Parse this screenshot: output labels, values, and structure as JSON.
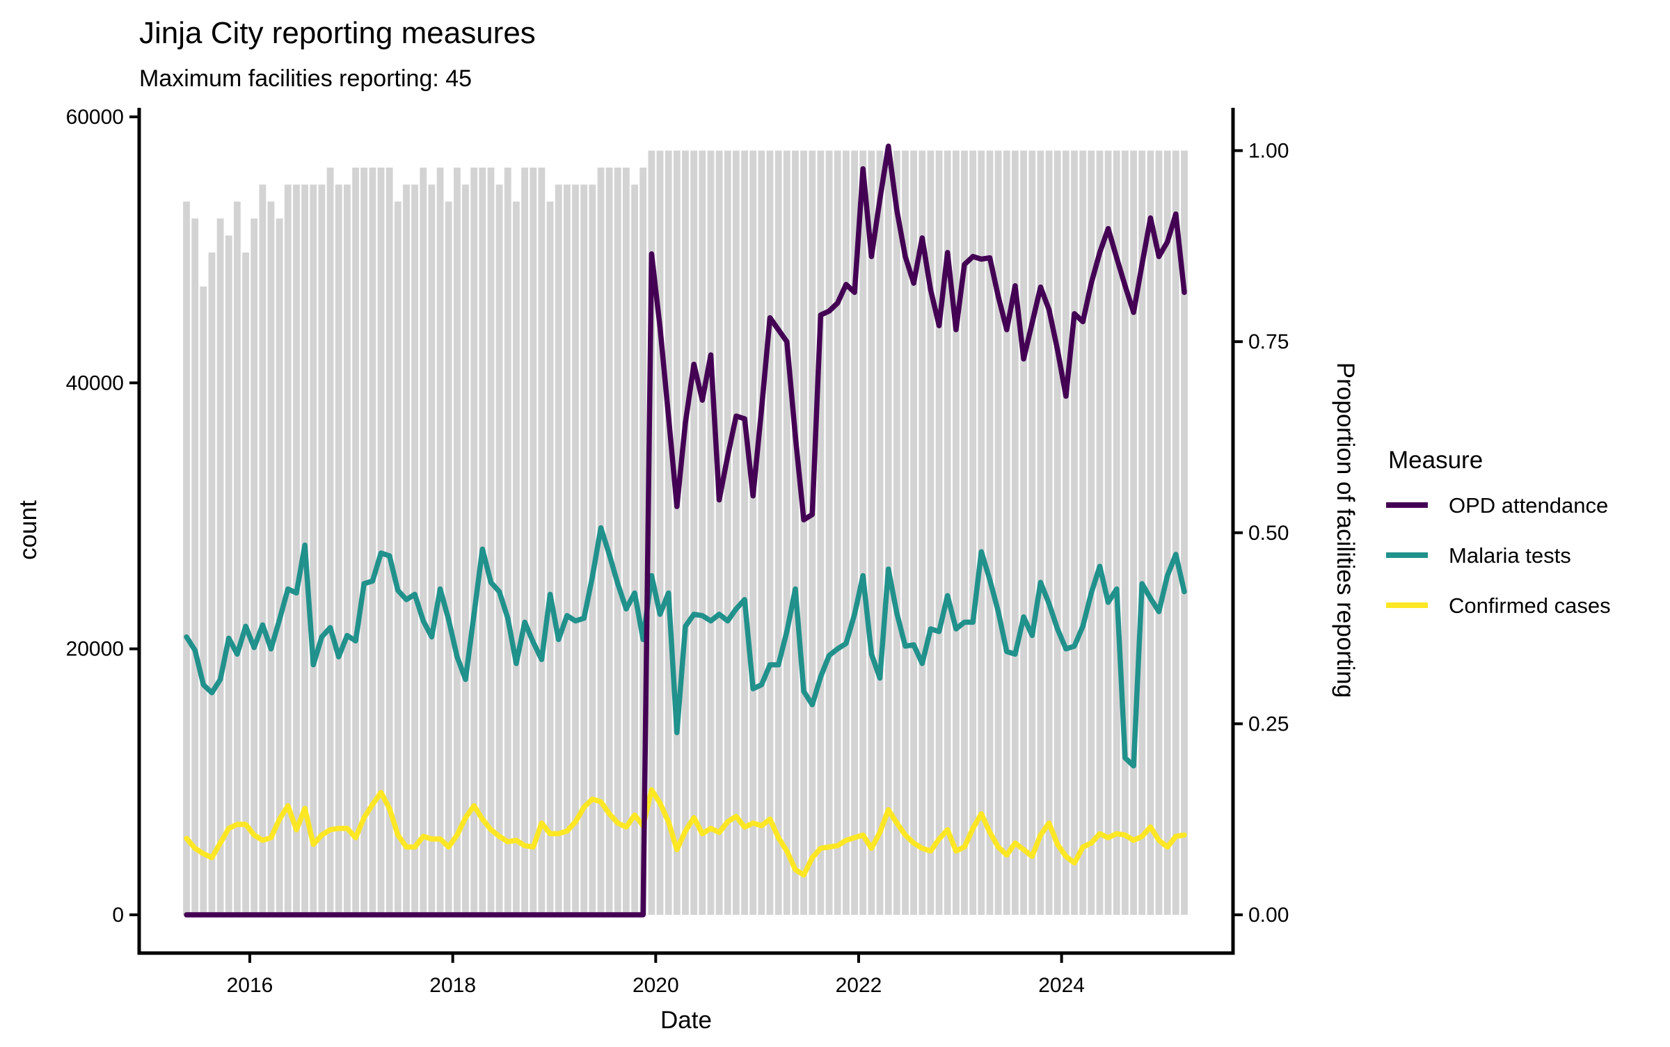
{
  "title": "Jinja City reporting measures",
  "subtitle": "Maximum facilities reporting: 45",
  "axes": {
    "x": {
      "title": "Date",
      "tick_labels": [
        "2016",
        "2018",
        "2020",
        "2022",
        "2024"
      ],
      "tick_years": [
        2016,
        2018,
        2020,
        2022,
        2024
      ]
    },
    "y_left": {
      "title": "count",
      "tick_labels": [
        "0",
        "20000",
        "40000",
        "60000"
      ],
      "tick_values": [
        0,
        20000,
        40000,
        60000
      ],
      "range": [
        0,
        60000
      ]
    },
    "y_right": {
      "title": "Proportion of facilities reporting",
      "tick_labels": [
        "0.00",
        "0.25",
        "0.50",
        "0.75",
        "1.00"
      ],
      "tick_values": [
        0,
        0.25,
        0.5,
        0.75,
        1
      ]
    }
  },
  "legend": {
    "title": "Measure",
    "items": [
      {
        "label": "OPD attendance",
        "color": "#440154"
      },
      {
        "label": "Malaria tests",
        "color": "#21918c"
      },
      {
        "label": "Confirmed cases",
        "color": "#fde725"
      }
    ]
  },
  "style": {
    "background": "#ffffff",
    "bar_color": "#d3d3d3",
    "axis_color": "#000000",
    "opd_color": "#440154",
    "malaria_color": "#21918c",
    "confirmed_color": "#fde725"
  },
  "chart_data": {
    "type": "line",
    "title": "Jinja City reporting measures",
    "subtitle": "Maximum facilities reporting: 45",
    "x_axis": {
      "label": "Date",
      "unit": "month",
      "start": "2015-05",
      "end": "2025-03",
      "n_points": 119,
      "tick_labels": [
        "2016",
        "2018",
        "2020",
        "2022",
        "2024"
      ]
    },
    "y_left_axis": {
      "label": "count",
      "range": [
        0,
        60000
      ],
      "tick_values": [
        0,
        20000,
        40000,
        60000
      ]
    },
    "y_right_axis": {
      "label": "Proportion of facilities reporting",
      "range": [
        0,
        1
      ],
      "tick_values": [
        0,
        0.25,
        0.5,
        0.75,
        1
      ]
    },
    "legend_position": "right",
    "grid": false,
    "background_bars": {
      "name": "Proportion of facilities reporting",
      "axis": "right",
      "max_facilities": 45,
      "facilities_reporting": [
        42,
        41,
        37,
        39,
        41,
        40,
        42,
        39,
        41,
        43,
        42,
        41,
        43,
        43,
        43,
        43,
        43,
        44,
        43,
        43,
        44,
        44,
        44,
        44,
        44,
        42,
        43,
        43,
        44,
        43,
        44,
        42,
        44,
        43,
        44,
        44,
        44,
        43,
        44,
        42,
        44,
        44,
        44,
        42,
        43,
        43,
        43,
        43,
        43,
        44,
        44,
        44,
        44,
        43,
        44,
        45,
        45,
        45,
        45,
        45,
        45,
        45,
        45,
        45,
        45,
        45,
        45,
        45,
        45,
        45,
        45,
        45,
        45,
        45,
        45,
        45,
        45,
        45,
        45,
        45,
        45,
        45,
        45,
        45,
        45,
        45,
        45,
        45,
        45,
        45,
        45,
        45,
        45,
        45,
        45,
        45,
        45,
        45,
        45,
        45,
        45,
        45,
        45,
        45,
        45,
        45,
        45,
        45,
        45,
        45,
        45,
        45,
        45,
        45,
        45,
        45,
        45,
        45,
        45
      ]
    },
    "series": [
      {
        "name": "OPD attendance",
        "color": "#440154",
        "axis": "left",
        "values": [
          0,
          0,
          0,
          0,
          0,
          0,
          0,
          0,
          0,
          0,
          0,
          0,
          0,
          0,
          0,
          0,
          0,
          0,
          0,
          0,
          0,
          0,
          0,
          0,
          0,
          0,
          0,
          0,
          0,
          0,
          0,
          0,
          0,
          0,
          0,
          0,
          0,
          0,
          0,
          0,
          0,
          0,
          0,
          0,
          0,
          0,
          0,
          0,
          0,
          0,
          0,
          0,
          0,
          0,
          0,
          49700,
          44200,
          37500,
          30700,
          37000,
          41400,
          38700,
          42100,
          31200,
          34500,
          37500,
          37300,
          31500,
          38000,
          44900,
          44000,
          43100,
          36000,
          29700,
          30100,
          45100,
          45400,
          46000,
          47400,
          46800,
          56100,
          49500,
          53800,
          57800,
          53000,
          49500,
          47500,
          50900,
          47000,
          44300,
          49800,
          44000,
          48900,
          49500,
          49300,
          49400,
          46500,
          44000,
          47300,
          41800,
          44500,
          47200,
          45500,
          42500,
          39000,
          45200,
          44600,
          47500,
          49800,
          51600,
          49400,
          47300,
          45300,
          48900,
          52400,
          49500,
          50600,
          52700,
          46800
        ]
      },
      {
        "name": "Malaria tests",
        "color": "#21918c",
        "axis": "left",
        "values": [
          20900,
          19900,
          17300,
          16700,
          17700,
          20800,
          19600,
          21700,
          20100,
          21800,
          20000,
          22200,
          24500,
          24200,
          27800,
          18800,
          20900,
          21600,
          19400,
          21000,
          20600,
          24900,
          25100,
          27200,
          27000,
          24400,
          23700,
          24100,
          22100,
          20900,
          24500,
          22200,
          19400,
          17700,
          22600,
          27500,
          25000,
          24300,
          22300,
          18900,
          22000,
          20500,
          19200,
          24100,
          20700,
          22500,
          22100,
          22300,
          25400,
          29100,
          27100,
          24900,
          23000,
          24200,
          20700,
          25500,
          22600,
          24200,
          13700,
          21700,
          22600,
          22500,
          22100,
          22600,
          22100,
          23000,
          23700,
          17000,
          17300,
          18800,
          18800,
          21300,
          24500,
          16800,
          15800,
          17900,
          19500,
          20000,
          20400,
          22600,
          25500,
          19600,
          17800,
          26000,
          22700,
          20200,
          20300,
          18900,
          21500,
          21300,
          24000,
          21500,
          22000,
          22000,
          27300,
          25200,
          22800,
          19800,
          19600,
          22400,
          21000,
          25000,
          23400,
          21500,
          20000,
          20200,
          21700,
          24200,
          26200,
          23500,
          24500,
          11800,
          11200,
          24900,
          23800,
          22800,
          25500,
          27100,
          24300
        ]
      },
      {
        "name": "Confirmed cases",
        "color": "#fde725",
        "axis": "left",
        "values": [
          5750,
          5000,
          4600,
          4300,
          5400,
          6500,
          6800,
          6800,
          6000,
          5600,
          5800,
          7200,
          8200,
          6400,
          8000,
          5300,
          6000,
          6400,
          6500,
          6500,
          5800,
          7300,
          8300,
          9200,
          8000,
          6000,
          5100,
          5100,
          5900,
          5700,
          5700,
          5100,
          6000,
          7300,
          8200,
          7200,
          6400,
          5900,
          5500,
          5600,
          5200,
          5100,
          6900,
          6100,
          6100,
          6300,
          7000,
          8100,
          8700,
          8500,
          7600,
          6900,
          6600,
          7500,
          6700,
          9400,
          8400,
          7000,
          4900,
          6300,
          7300,
          6100,
          6500,
          6200,
          7000,
          7400,
          6600,
          6900,
          6700,
          7200,
          5800,
          4800,
          3400,
          3000,
          4300,
          5000,
          5100,
          5200,
          5600,
          5800,
          6000,
          5000,
          6200,
          7900,
          6900,
          6000,
          5400,
          5000,
          4800,
          5700,
          6400,
          4800,
          5100,
          6500,
          7600,
          6200,
          5100,
          4500,
          5400,
          4900,
          4400,
          6000,
          6900,
          5300,
          4400,
          3900,
          5100,
          5400,
          6100,
          5800,
          6100,
          6000,
          5600,
          5900,
          6600,
          5600,
          5100,
          5900,
          6000
        ]
      }
    ]
  }
}
